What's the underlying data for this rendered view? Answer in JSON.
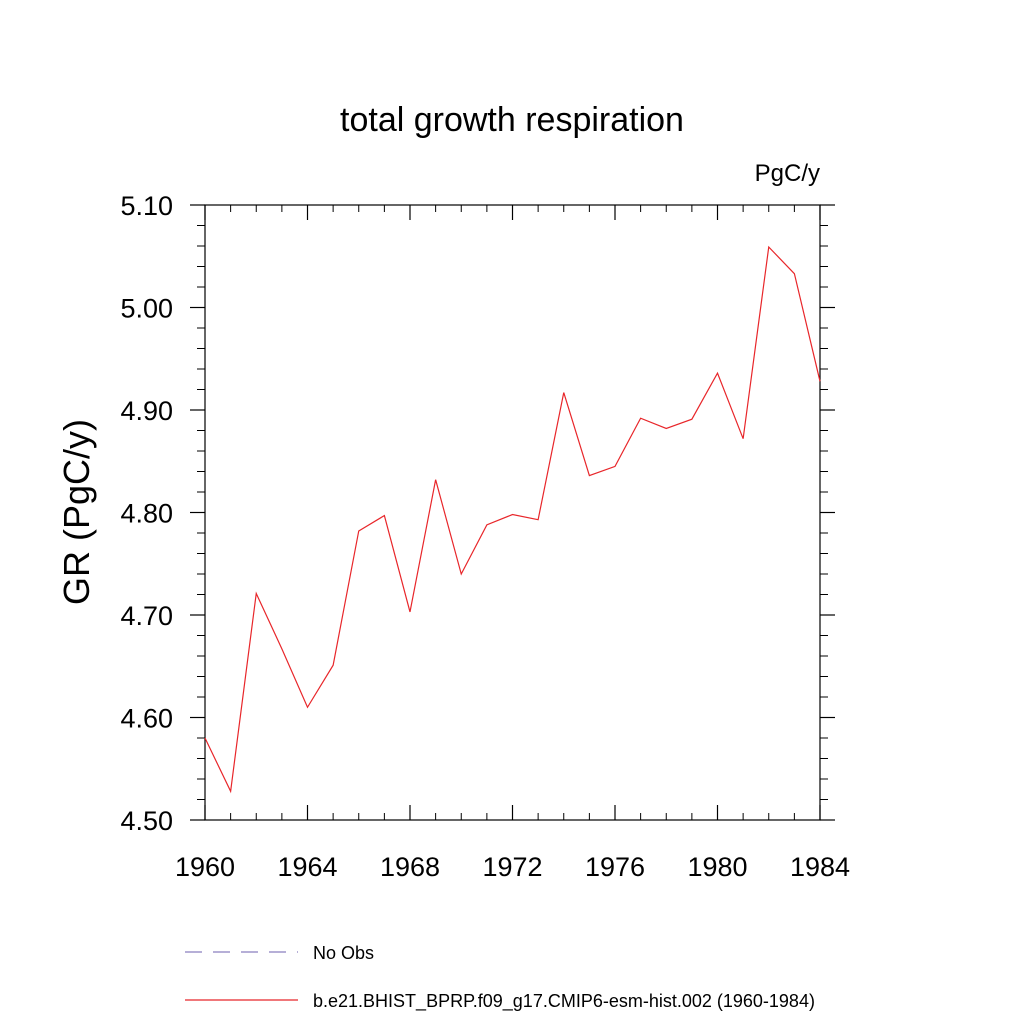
{
  "chart_data": {
    "type": "line",
    "title": "total growth respiration",
    "units_label": "PgC/y",
    "xlabel": "",
    "ylabel": "GR  (PgC/y)",
    "xlim": [
      1960,
      1984
    ],
    "ylim": [
      4.5,
      5.1
    ],
    "x_ticks": [
      "1960",
      "1964",
      "1968",
      "1972",
      "1976",
      "1980",
      "1984"
    ],
    "y_ticks": [
      "4.50",
      "4.60",
      "4.70",
      "4.80",
      "4.90",
      "5.00",
      "5.10"
    ],
    "grid": false,
    "legend_position": "bottom",
    "series": [
      {
        "name": "b.e21.BHIST_BPRP.f09_g17.CMIP6-esm-hist.002 (1960-1984)",
        "color": "#e8262a",
        "style": "solid",
        "x": [
          1960,
          1961,
          1962,
          1963,
          1964,
          1965,
          1966,
          1967,
          1968,
          1969,
          1970,
          1971,
          1972,
          1973,
          1974,
          1975,
          1976,
          1977,
          1978,
          1979,
          1980,
          1981,
          1982,
          1983,
          1984
        ],
        "values": [
          4.58,
          4.528,
          4.721,
          4.667,
          4.61,
          4.651,
          4.782,
          4.797,
          4.703,
          4.832,
          4.74,
          4.788,
          4.798,
          4.793,
          4.917,
          4.836,
          4.845,
          4.892,
          4.882,
          4.891,
          4.936,
          4.872,
          5.059,
          5.033,
          4.928
        ]
      }
    ],
    "legend": [
      {
        "label": "No Obs",
        "color": "#8a7fbf",
        "style": "dashed"
      },
      {
        "label": "b.e21.BHIST_BPRP.f09_g17.CMIP6-esm-hist.002 (1960-1984)",
        "color": "#e8262a",
        "style": "solid"
      }
    ]
  }
}
